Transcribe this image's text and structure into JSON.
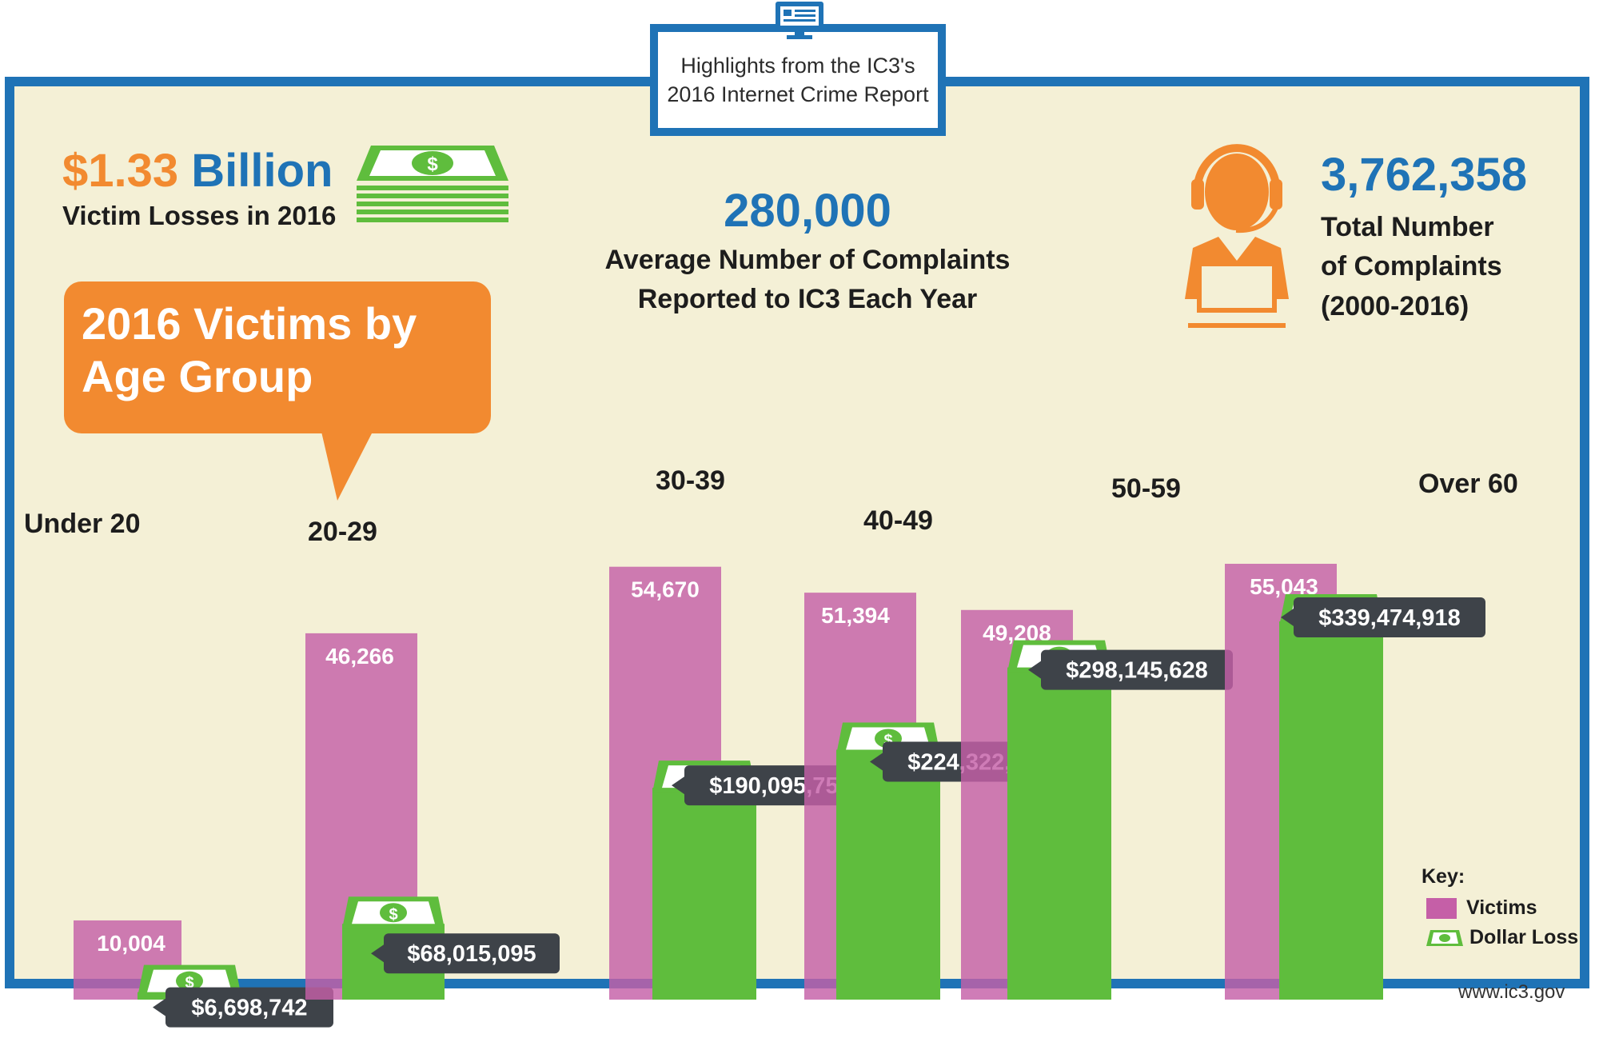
{
  "header": {
    "line1": "Highlights from the IC3's",
    "line2": "2016 Internet Crime Report",
    "icon": "monitor-icon"
  },
  "stats": {
    "losses": {
      "value_orange": "$1.33",
      "value_blue": "Billion",
      "label": "Victim Losses in 2016",
      "icon": "money-stack-icon"
    },
    "average": {
      "value": "280,000",
      "label_line1": "Average Number of Complaints",
      "label_line2": "Reported to IC3 Each Year"
    },
    "total": {
      "value": "3,762,358",
      "label_line1": "Total Number",
      "label_line2": "of Complaints",
      "label_line3": "(2000-2016)",
      "icon": "headset-agent-icon"
    }
  },
  "callout": {
    "line1": "2016 Victims by",
    "line2": "Age Group"
  },
  "chart_data": {
    "type": "bar",
    "categories": [
      "Under 20",
      "20-29",
      "30-39",
      "40-49",
      "50-59",
      "Over 60"
    ],
    "series": [
      {
        "name": "Victims",
        "values": [
          10004,
          46266,
          54670,
          51394,
          49208,
          55043
        ],
        "labels": [
          "10,004",
          "46,266",
          "54,670",
          "51,394",
          "49,208",
          "55,043"
        ],
        "color": "#c55fa7"
      },
      {
        "name": "Dollar Loss",
        "values": [
          6698742,
          68015095,
          190095752,
          224322960,
          298145628,
          339474918
        ],
        "labels": [
          "$6,698,742",
          "$68,015,095",
          "$190,095,752",
          "$224,322,960",
          "$298,145,628",
          "$339,474,918"
        ],
        "color": "#5fbd3d"
      }
    ],
    "grid": false,
    "legend": "bottom-right"
  },
  "key": {
    "title": "Key:",
    "victims": "Victims",
    "dollar": "Dollar Loss"
  },
  "source": "www.ic3.gov",
  "colors": {
    "frame": "#1f73b6",
    "background": "#f4f0d6",
    "accent_orange": "#f28a30",
    "victims": "#c55fa7",
    "dollar": "#5fbd3d",
    "label_bg": "#3e4349"
  }
}
